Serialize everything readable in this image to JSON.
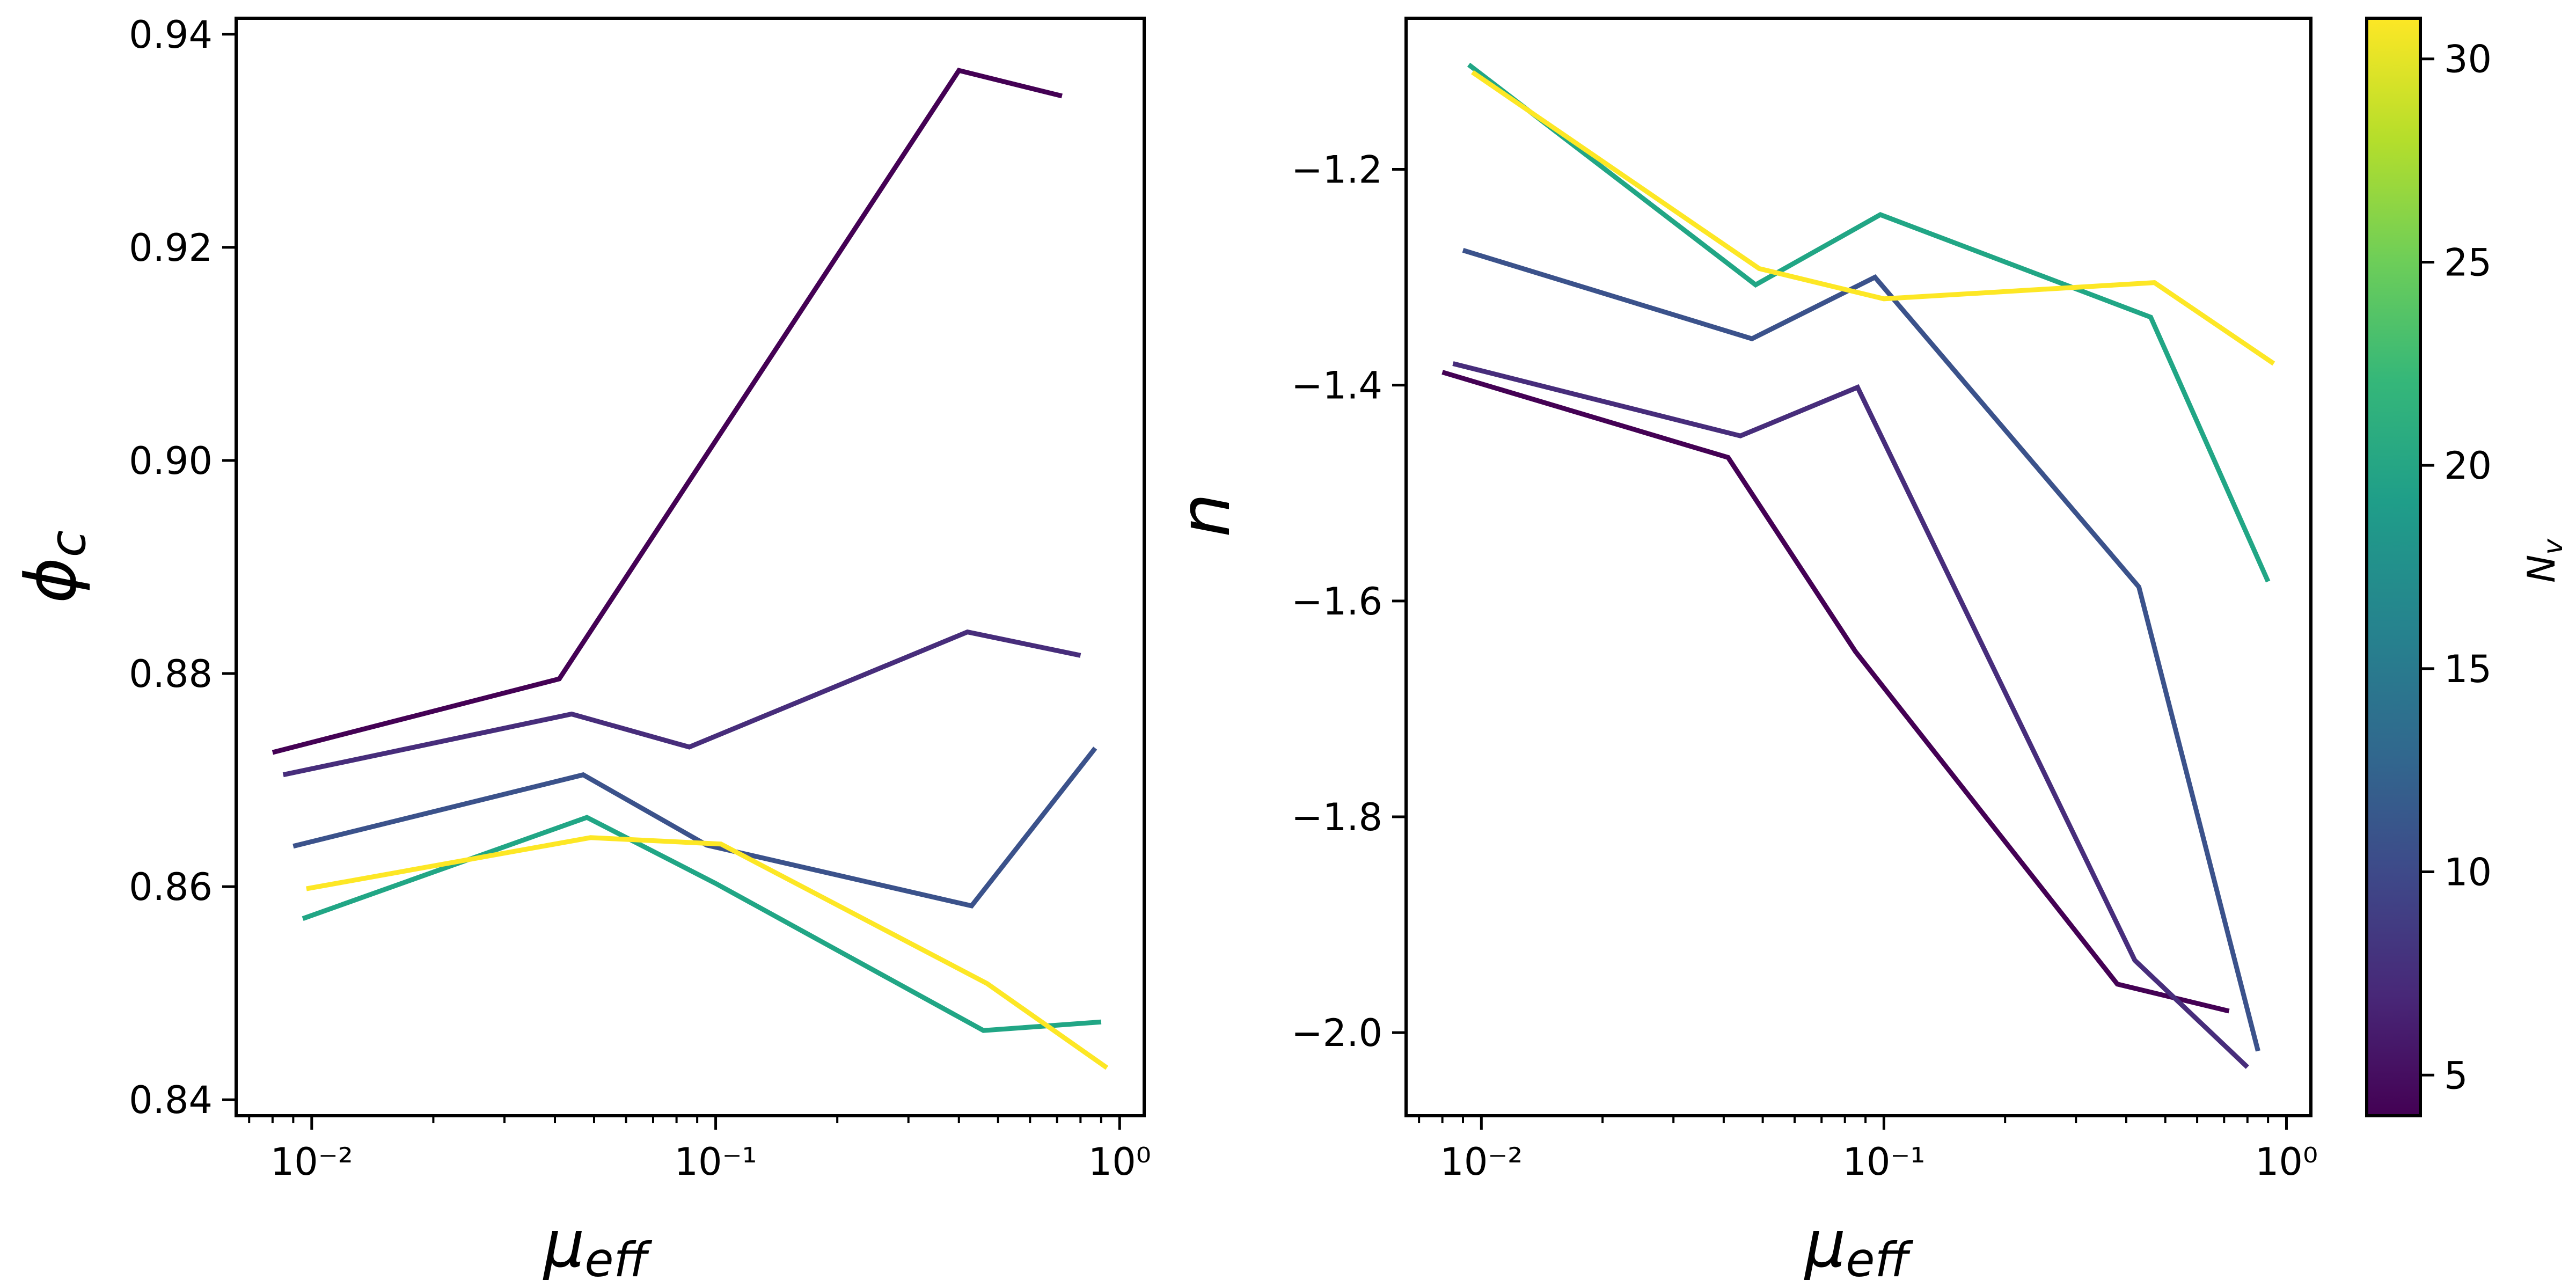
{
  "colorbar": {
    "label": "N_v",
    "range": [
      4,
      31
    ],
    "ticks": [
      5,
      10,
      15,
      20,
      25,
      30
    ],
    "tick_labels": [
      "5",
      "10",
      "15",
      "20",
      "25",
      "30"
    ],
    "colormap": [
      "#440154",
      "#482878",
      "#3e4989",
      "#31688e",
      "#26828e",
      "#1f9e89",
      "#35b779",
      "#6ece58",
      "#b5de2b",
      "#fde725"
    ]
  },
  "chart_data": [
    {
      "type": "line",
      "xscale": "log",
      "xlabel": "μ_eff",
      "ylabel": "ϕ_c",
      "xlim": [
        0.0065,
        1.15
      ],
      "ylim": [
        0.8385,
        0.9415
      ],
      "x_ticks": [
        0.01,
        0.1,
        1
      ],
      "x_tick_labels": [
        "10⁻²",
        "10⁻¹",
        "10⁰"
      ],
      "y_ticks": [
        0.84,
        0.86,
        0.88,
        0.9,
        0.92,
        0.94
      ],
      "y_tick_labels": [
        "0.84",
        "0.86",
        "0.88",
        "0.90",
        "0.92",
        "0.94"
      ],
      "grid": false,
      "series": [
        {
          "nv": 4,
          "color": "#440154",
          "x": [
            0.008,
            0.041,
            0.4,
            0.72
          ],
          "y": [
            0.8726,
            0.8795,
            0.9366,
            0.9342
          ]
        },
        {
          "nv": 7,
          "color": "#472d7b",
          "x": [
            0.0085,
            0.044,
            0.086,
            0.42,
            0.8
          ],
          "y": [
            0.8705,
            0.8762,
            0.8731,
            0.8839,
            0.8817
          ]
        },
        {
          "nv": 11,
          "color": "#3b528b",
          "x": [
            0.009,
            0.047,
            0.095,
            0.43,
            0.87
          ],
          "y": [
            0.8638,
            0.8705,
            0.8639,
            0.8582,
            0.873
          ]
        },
        {
          "nv": 21,
          "color": "#21a685",
          "x": [
            0.0095,
            0.048,
            0.1,
            0.46,
            0.9
          ],
          "y": [
            0.857,
            0.8665,
            0.8603,
            0.8465,
            0.8473
          ]
        },
        {
          "nv": 31,
          "color": "#fde725",
          "x": [
            0.0097,
            0.049,
            0.103,
            0.47,
            0.93
          ],
          "y": [
            0.8598,
            0.8646,
            0.864,
            0.8509,
            0.843
          ]
        }
      ]
    },
    {
      "type": "line",
      "xscale": "log",
      "xlabel": "μ_eff",
      "ylabel": "n",
      "xlim": [
        0.0065,
        1.15
      ],
      "ylim": [
        -2.077,
        -1.06
      ],
      "x_ticks": [
        0.01,
        0.1,
        1
      ],
      "x_tick_labels": [
        "10⁻²",
        "10⁻¹",
        "10⁰"
      ],
      "y_ticks": [
        -2.0,
        -1.8,
        -1.6,
        -1.4,
        -1.2
      ],
      "y_tick_labels": [
        "−2.0",
        "−1.8",
        "−1.6",
        "−1.4",
        "−1.2"
      ],
      "grid": false,
      "series": [
        {
          "nv": 4,
          "color": "#440154",
          "x": [
            0.008,
            0.041,
            0.085,
            0.38,
            0.72
          ],
          "y": [
            -1.388,
            -1.467,
            -1.647,
            -1.955,
            -1.98
          ]
        },
        {
          "nv": 7,
          "color": "#472d7b",
          "x": [
            0.0085,
            0.044,
            0.086,
            0.42,
            0.8
          ],
          "y": [
            -1.38,
            -1.447,
            -1.402,
            -1.933,
            -2.032
          ]
        },
        {
          "nv": 11,
          "color": "#3b528b",
          "x": [
            0.009,
            0.047,
            0.095,
            0.43,
            0.85
          ],
          "y": [
            -1.275,
            -1.357,
            -1.3,
            -1.587,
            -2.017
          ]
        },
        {
          "nv": 21,
          "color": "#21a685",
          "x": [
            0.0093,
            0.048,
            0.098,
            0.46,
            0.9
          ],
          "y": [
            -1.103,
            -1.307,
            -1.242,
            -1.337,
            -1.582
          ]
        },
        {
          "nv": 31,
          "color": "#fde725",
          "x": [
            0.0095,
            0.049,
            0.1,
            0.47,
            0.93
          ],
          "y": [
            -1.11,
            -1.292,
            -1.32,
            -1.305,
            -1.38
          ]
        }
      ]
    }
  ]
}
